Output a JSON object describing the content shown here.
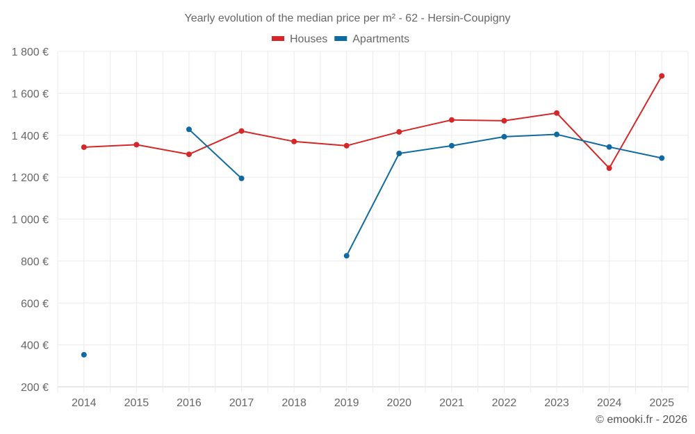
{
  "chart_data": {
    "type": "line",
    "title": "Yearly evolution of the median price per m² - 62 - Hersin-Coupigny",
    "xlabel": "",
    "ylabel": "",
    "categories": [
      "2014",
      "2015",
      "2016",
      "2017",
      "2018",
      "2019",
      "2020",
      "2021",
      "2022",
      "2023",
      "2024",
      "2025"
    ],
    "ylim": [
      200,
      1800
    ],
    "yticks": [
      200,
      400,
      600,
      800,
      1000,
      1200,
      1400,
      1600,
      1800
    ],
    "ytick_labels": [
      "200 €",
      "400 €",
      "600 €",
      "800 €",
      "1 000 €",
      "1 200 €",
      "1 400 €",
      "1 600 €",
      "1 800 €"
    ],
    "grid": true,
    "legend_position": "top-center",
    "series": [
      {
        "name": "Houses",
        "color": "#d62728",
        "values": [
          1343,
          1355,
          1309,
          1420,
          1370,
          1350,
          1416,
          1473,
          1469,
          1506,
          1243,
          1683
        ]
      },
      {
        "name": "Apartments",
        "color": "#0e6aa0",
        "values": [
          353,
          null,
          1428,
          1194,
          null,
          825,
          1313,
          1350,
          1393,
          1404,
          1344,
          1291
        ]
      }
    ],
    "credit": "© emooki.fr - 2026"
  }
}
